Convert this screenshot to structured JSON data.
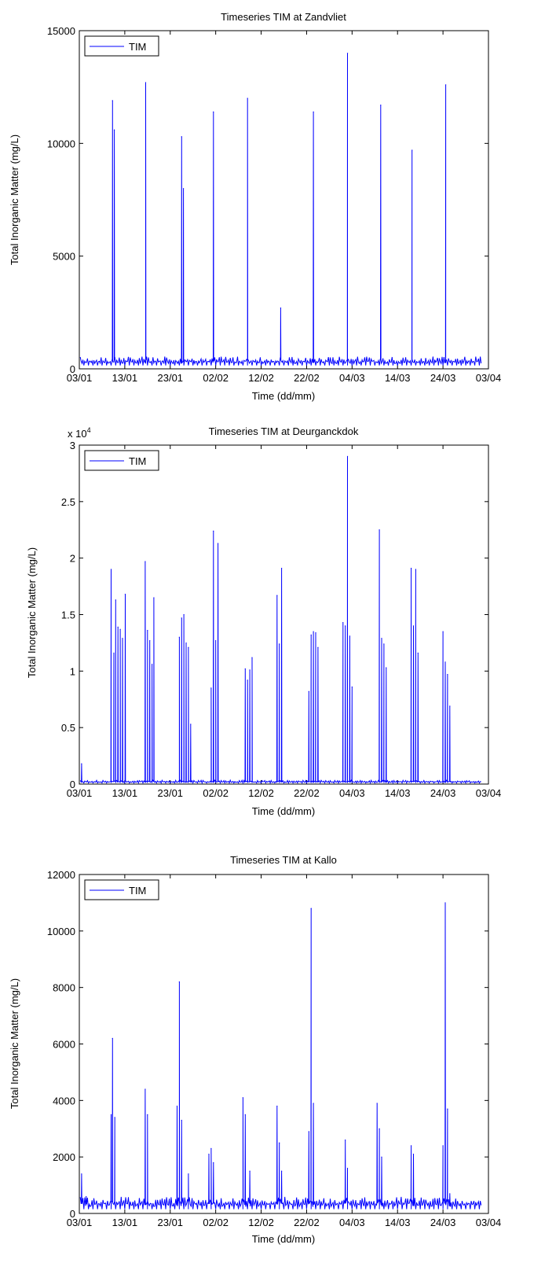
{
  "chart_data": [
    {
      "type": "line",
      "title": "Timeseries TIM at Zandvliet",
      "xlabel": "Time (dd/mm)",
      "ylabel": "Total Inorganic Matter (mg/L)",
      "x_ticks": [
        "03/01",
        "13/01",
        "23/01",
        "02/02",
        "12/02",
        "22/02",
        "04/03",
        "14/03",
        "24/03",
        "03/04"
      ],
      "y_ticks": [
        "0",
        "5000",
        "10000",
        "15000"
      ],
      "xlim": [
        0,
        90
      ],
      "ylim": [
        0,
        15000
      ],
      "legend": {
        "position": "top-left",
        "entries": [
          "TIM"
        ]
      },
      "series": [
        {
          "name": "TIM",
          "color": "#0000ff",
          "baseline_low": 150,
          "baseline_high": 650,
          "spikes": [
            {
              "x": 7.3,
              "y": 11900
            },
            {
              "x": 7.7,
              "y": 10600
            },
            {
              "x": 14.6,
              "y": 12700
            },
            {
              "x": 22.5,
              "y": 10300
            },
            {
              "x": 22.9,
              "y": 8000
            },
            {
              "x": 29.5,
              "y": 11400
            },
            {
              "x": 37.0,
              "y": 12000
            },
            {
              "x": 44.3,
              "y": 2700
            },
            {
              "x": 51.5,
              "y": 11400
            },
            {
              "x": 59.0,
              "y": 14000
            },
            {
              "x": 66.3,
              "y": 11700
            },
            {
              "x": 73.2,
              "y": 9700
            },
            {
              "x": 80.6,
              "y": 12600
            }
          ]
        }
      ]
    },
    {
      "type": "line",
      "title": "Timeseries TIM at Deurganckdok",
      "xlabel": "Time (dd/mm)",
      "ylabel": "Total Inorganic Matter (mg/L)",
      "y_multiplier": "x 10",
      "y_multiplier_exp": "4",
      "x_ticks": [
        "03/01",
        "13/01",
        "23/01",
        "02/02",
        "12/02",
        "22/02",
        "04/03",
        "14/03",
        "24/03",
        "03/04"
      ],
      "y_ticks": [
        "0",
        "0.5",
        "1",
        "1.5",
        "2",
        "2.5",
        "3"
      ],
      "xlim": [
        0,
        90
      ],
      "ylim": [
        0,
        30000
      ],
      "legend": {
        "position": "top-left",
        "entries": [
          "TIM"
        ]
      },
      "series": [
        {
          "name": "TIM",
          "color": "#0000ff",
          "baseline_low": 100,
          "baseline_high": 400,
          "spikes": [
            {
              "x": 0.5,
              "y": 1800
            },
            {
              "x": 7.0,
              "y": 19000
            },
            {
              "x": 7.6,
              "y": 11600
            },
            {
              "x": 8.0,
              "y": 16300
            },
            {
              "x": 8.5,
              "y": 13900
            },
            {
              "x": 9.0,
              "y": 13700
            },
            {
              "x": 9.5,
              "y": 12900
            },
            {
              "x": 10.1,
              "y": 16800
            },
            {
              "x": 14.5,
              "y": 19700
            },
            {
              "x": 15.0,
              "y": 13600
            },
            {
              "x": 15.5,
              "y": 12700
            },
            {
              "x": 16.0,
              "y": 10600
            },
            {
              "x": 16.4,
              "y": 16500
            },
            {
              "x": 22.0,
              "y": 13000
            },
            {
              "x": 22.5,
              "y": 14700
            },
            {
              "x": 23.0,
              "y": 15000
            },
            {
              "x": 23.5,
              "y": 12500
            },
            {
              "x": 24.0,
              "y": 12100
            },
            {
              "x": 24.5,
              "y": 5300
            },
            {
              "x": 29.0,
              "y": 8500
            },
            {
              "x": 29.5,
              "y": 22400
            },
            {
              "x": 30.0,
              "y": 12700
            },
            {
              "x": 30.5,
              "y": 21300
            },
            {
              "x": 36.5,
              "y": 10200
            },
            {
              "x": 37.0,
              "y": 9200
            },
            {
              "x": 37.5,
              "y": 10100
            },
            {
              "x": 38.0,
              "y": 11200
            },
            {
              "x": 43.5,
              "y": 16700
            },
            {
              "x": 44.0,
              "y": 12400
            },
            {
              "x": 44.5,
              "y": 19100
            },
            {
              "x": 50.5,
              "y": 8200
            },
            {
              "x": 51.0,
              "y": 13200
            },
            {
              "x": 51.5,
              "y": 13500
            },
            {
              "x": 52.0,
              "y": 13400
            },
            {
              "x": 52.5,
              "y": 12100
            },
            {
              "x": 58.0,
              "y": 14300
            },
            {
              "x": 58.5,
              "y": 14000
            },
            {
              "x": 59.0,
              "y": 29000
            },
            {
              "x": 59.5,
              "y": 13100
            },
            {
              "x": 60.0,
              "y": 8600
            },
            {
              "x": 66.0,
              "y": 22500
            },
            {
              "x": 66.5,
              "y": 12900
            },
            {
              "x": 67.0,
              "y": 12400
            },
            {
              "x": 67.5,
              "y": 10300
            },
            {
              "x": 73.0,
              "y": 19100
            },
            {
              "x": 73.5,
              "y": 14000
            },
            {
              "x": 74.0,
              "y": 19000
            },
            {
              "x": 74.5,
              "y": 11600
            },
            {
              "x": 80.0,
              "y": 13500
            },
            {
              "x": 80.5,
              "y": 10800
            },
            {
              "x": 81.0,
              "y": 9700
            },
            {
              "x": 81.5,
              "y": 6900
            }
          ]
        }
      ]
    },
    {
      "type": "line",
      "title": "Timeseries TIM at Kallo",
      "xlabel": "Time (dd/mm)",
      "ylabel": "Total Inorganic Matter (mg/L)",
      "x_ticks": [
        "03/01",
        "13/01",
        "23/01",
        "02/02",
        "12/02",
        "22/02",
        "04/03",
        "14/03",
        "24/03",
        "03/04"
      ],
      "y_ticks": [
        "0",
        "2000",
        "4000",
        "6000",
        "8000",
        "10000",
        "12000"
      ],
      "xlim": [
        0,
        90
      ],
      "ylim": [
        0,
        12000
      ],
      "legend": {
        "position": "top-left",
        "entries": [
          "TIM"
        ]
      },
      "series": [
        {
          "name": "TIM",
          "color": "#0000ff",
          "baseline_low": 150,
          "baseline_high": 700,
          "spikes": [
            {
              "x": 0.5,
              "y": 1400
            },
            {
              "x": 1.5,
              "y": 600
            },
            {
              "x": 7.0,
              "y": 3500
            },
            {
              "x": 7.3,
              "y": 6200
            },
            {
              "x": 7.8,
              "y": 3400
            },
            {
              "x": 14.5,
              "y": 4400
            },
            {
              "x": 15.0,
              "y": 3500
            },
            {
              "x": 21.5,
              "y": 3800
            },
            {
              "x": 22.0,
              "y": 8200
            },
            {
              "x": 22.5,
              "y": 3300
            },
            {
              "x": 24.0,
              "y": 1400
            },
            {
              "x": 28.5,
              "y": 2100
            },
            {
              "x": 29.0,
              "y": 2300
            },
            {
              "x": 29.5,
              "y": 1800
            },
            {
              "x": 36.0,
              "y": 4100
            },
            {
              "x": 36.5,
              "y": 3500
            },
            {
              "x": 37.5,
              "y": 1500
            },
            {
              "x": 43.5,
              "y": 3800
            },
            {
              "x": 44.0,
              "y": 2500
            },
            {
              "x": 44.5,
              "y": 1500
            },
            {
              "x": 50.5,
              "y": 2900
            },
            {
              "x": 51.0,
              "y": 10800
            },
            {
              "x": 51.5,
              "y": 3900
            },
            {
              "x": 58.5,
              "y": 2600
            },
            {
              "x": 59.0,
              "y": 1600
            },
            {
              "x": 65.5,
              "y": 3900
            },
            {
              "x": 66.0,
              "y": 3000
            },
            {
              "x": 66.5,
              "y": 2000
            },
            {
              "x": 73.0,
              "y": 2400
            },
            {
              "x": 73.5,
              "y": 2100
            },
            {
              "x": 80.0,
              "y": 2400
            },
            {
              "x": 80.5,
              "y": 11000
            },
            {
              "x": 81.0,
              "y": 3700
            },
            {
              "x": 81.5,
              "y": 700
            }
          ]
        }
      ]
    }
  ]
}
